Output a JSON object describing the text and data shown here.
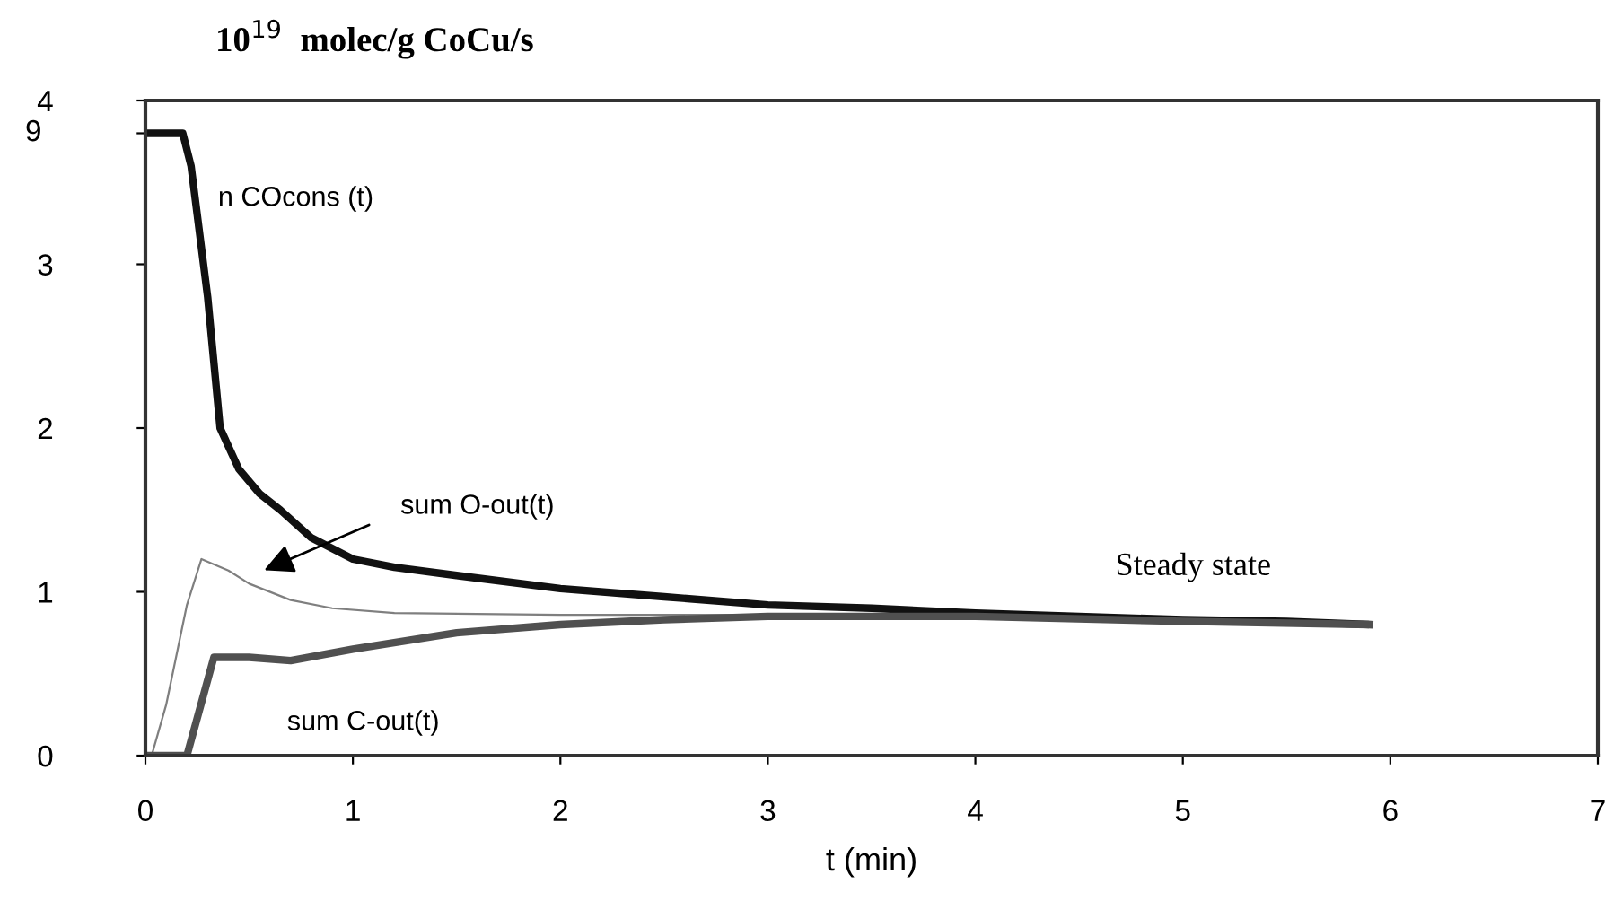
{
  "chart_data": {
    "type": "line",
    "title": "10$^{19}$  molec/g CoCu/s",
    "xlabel": "t (min)",
    "xlim": [
      0,
      7
    ],
    "xticks": [
      0,
      1,
      2,
      3,
      4,
      5,
      6,
      7
    ],
    "ylim": [
      0,
      4
    ],
    "yticks": [
      0,
      1,
      2,
      3,
      {
        "value": 3.8,
        "label": null
      },
      4
    ],
    "grid": false,
    "legend": false,
    "marker": "none",
    "line_style": "solid",
    "annotations": [
      "Steady state",
      "9"
    ],
    "series": [
      {
        "name": "n COcons (t)",
        "color": "#111111",
        "x": [
          0,
          0.18,
          0.22,
          0.25,
          0.28,
          0.3,
          0.33,
          0.36,
          0.45,
          0.55,
          0.65,
          0.8,
          1.0,
          1.2,
          1.5,
          2,
          2.5,
          3,
          3.5,
          4,
          4.5,
          5,
          5.5,
          5.9
        ],
        "values": [
          3.8,
          3.8,
          3.6,
          3.3,
          3.0,
          2.8,
          2.4,
          2.0,
          1.75,
          1.6,
          1.5,
          1.33,
          1.2,
          1.15,
          1.1,
          1.02,
          0.97,
          0.92,
          0.9,
          0.87,
          0.85,
          0.83,
          0.82,
          0.8
        ]
      },
      {
        "name": "sum O-out(t)",
        "color": "#7f7f7f",
        "x": [
          0,
          0.03,
          0.1,
          0.2,
          0.27,
          0.4,
          0.5,
          0.7,
          0.9,
          1.2,
          2,
          3,
          4,
          5,
          5.9
        ],
        "values": [
          0,
          0,
          0.31,
          0.92,
          1.2,
          1.13,
          1.05,
          0.95,
          0.9,
          0.87,
          0.86,
          0.86,
          0.85,
          0.82,
          0.8
        ]
      },
      {
        "name": "sum C-out(t)",
        "color": "#505050",
        "x": [
          0,
          0.2,
          0.33,
          0.5,
          0.7,
          1.0,
          1.5,
          2,
          2.5,
          3,
          4,
          5,
          5.9
        ],
        "values": [
          0,
          0,
          0.6,
          0.6,
          0.58,
          0.65,
          0.75,
          0.8,
          0.83,
          0.85,
          0.85,
          0.82,
          0.8
        ]
      }
    ]
  }
}
